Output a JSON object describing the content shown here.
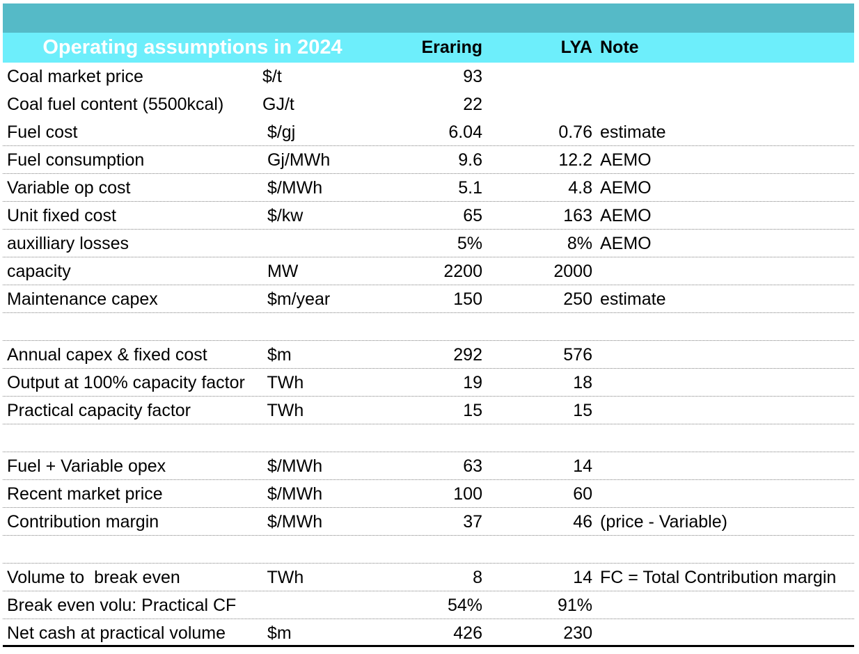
{
  "title": "Operating assumptions in 2024",
  "colors": {
    "title_bar_bg": "#55bac7",
    "title_text": "#ffffff",
    "header_bg": "#6deefb",
    "body_text": "#000000",
    "row_divider": "#808080",
    "bottom_border": "#000000"
  },
  "table": {
    "columns": {
      "eraring": "Eraring",
      "lya": "LYA",
      "note": "Note"
    },
    "rows": [
      {
        "label": "Coal market price",
        "unit": "$/t",
        "eraring": "93",
        "lya": "",
        "note": "",
        "divider": false
      },
      {
        "label": "Coal fuel content (5500kcal)",
        "unit": "GJ/t",
        "eraring": "22",
        "lya": "",
        "note": "",
        "divider": false
      },
      {
        "label": "Fuel cost",
        "unit": " $/gj",
        "eraring": "6.04",
        "lya": "0.76",
        "note": "estimate",
        "divider": true
      },
      {
        "label": "Fuel consumption",
        "unit": " Gj/MWh",
        "eraring": "9.6",
        "lya": "12.2",
        "note": "AEMO",
        "divider": true
      },
      {
        "label": "Variable op cost",
        "unit": " $/MWh",
        "eraring": "5.1",
        "lya": "4.8",
        "note": "AEMO",
        "divider": true
      },
      {
        "label": "Unit fixed cost",
        "unit": " $/kw",
        "eraring": "65",
        "lya": "163",
        "note": "AEMO",
        "divider": true
      },
      {
        "label": "auxilliary losses",
        "unit": "",
        "eraring": "5%",
        "lya": "8%",
        "note": "AEMO",
        "divider": true
      },
      {
        "label": "capacity",
        "unit": " MW",
        "eraring": "2200",
        "lya": "2000",
        "note": "",
        "divider": true
      },
      {
        "label": "Maintenance capex",
        "unit": " $m/year",
        "eraring": "150",
        "lya": "250",
        "note": "estimate",
        "divider": true
      },
      {
        "label": "",
        "unit": "",
        "eraring": "",
        "lya": "",
        "note": "",
        "divider": true
      },
      {
        "label": "Annual capex & fixed cost",
        "unit": " $m",
        "eraring": "292",
        "lya": "576",
        "note": "",
        "divider": true
      },
      {
        "label": "Output at 100% capacity factor",
        "unit": " TWh",
        "eraring": "19",
        "lya": "18",
        "note": "",
        "divider": true
      },
      {
        "label": "Practical capacity factor",
        "unit": " TWh",
        "eraring": "15",
        "lya": "15",
        "note": "",
        "divider": true
      },
      {
        "label": "",
        "unit": "",
        "eraring": "",
        "lya": "",
        "note": "",
        "divider": true
      },
      {
        "label": "Fuel + Variable opex",
        "unit": " $/MWh",
        "eraring": "63",
        "lya": "14",
        "note": "",
        "divider": true
      },
      {
        "label": "Recent market price",
        "unit": " $/MWh",
        "eraring": "100",
        "lya": "60",
        "note": "",
        "divider": true
      },
      {
        "label": "Contribution margin",
        "unit": " $/MWh",
        "eraring": "37",
        "lya": "46",
        "note": "(price - Variable)",
        "divider": true
      },
      {
        "label": "",
        "unit": "",
        "eraring": "",
        "lya": "",
        "note": "",
        "divider": true
      },
      {
        "label": "Volume to  break even",
        "unit": " TWh",
        "eraring": "8",
        "lya": "14",
        "note": "FC = Total Contribution margin",
        "divider": true
      },
      {
        "label": "Break even volu: Practical CF",
        "unit": "",
        "eraring": "54%",
        "lya": "91%",
        "note": "",
        "divider": true
      },
      {
        "label": "Net cash at practical volume",
        "unit": " $m",
        "eraring": "426",
        "lya": "230",
        "note": "",
        "divider": false,
        "thick_bottom": true
      }
    ]
  }
}
